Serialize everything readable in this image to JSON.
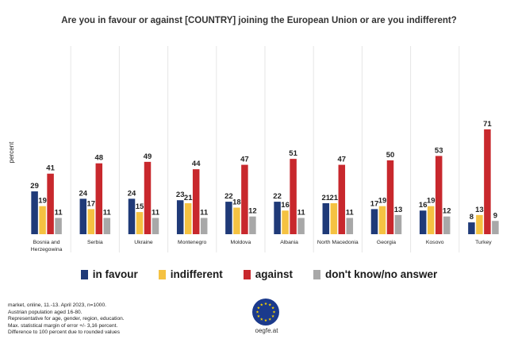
{
  "chart_data": {
    "type": "bar",
    "title": "Are you in favour or against [COUNTRY] joining the European Union or are you indifferent?",
    "ylabel": "percent",
    "ylim": [
      0,
      80
    ],
    "grid": false,
    "legend_position": "bottom",
    "categories": [
      "Bosnia and Herzegowina",
      "Serbia",
      "Ukraine",
      "Montenegro",
      "Moldova",
      "Albania",
      "North Macedonia",
      "Georgia",
      "Kosovo",
      "Turkey"
    ],
    "category_lines": [
      [
        "Bosnia and",
        "Herzegowina"
      ],
      [
        "Serbia"
      ],
      [
        "Ukraine"
      ],
      [
        "Montenegro"
      ],
      [
        "Moldova"
      ],
      [
        "Albania"
      ],
      [
        "North Macedonia"
      ],
      [
        "Georgia"
      ],
      [
        "Kosovo"
      ],
      [
        "Turkey"
      ]
    ],
    "series": [
      {
        "name": "in favour",
        "color": "#1f3a78",
        "values": [
          29,
          24,
          24,
          23,
          22,
          22,
          21,
          17,
          16,
          8
        ]
      },
      {
        "name": "indifferent",
        "color": "#f5c242",
        "values": [
          19,
          17,
          15,
          21,
          18,
          16,
          21,
          19,
          19,
          13
        ]
      },
      {
        "name": "against",
        "color": "#c8282d",
        "values": [
          41,
          48,
          49,
          44,
          47,
          51,
          47,
          50,
          53,
          71
        ]
      },
      {
        "name": "don't know/no answer",
        "color": "#a8a8a8",
        "values": [
          11,
          11,
          11,
          11,
          12,
          11,
          11,
          13,
          12,
          9
        ]
      }
    ]
  },
  "footnote": [
    "market, online, 11.-13. April 2023, n=1000.",
    "Austrian population aged 16-80.",
    "Representative for age, gender, region, education.",
    "Max. statistical margin of error +/- 3,16 percent.",
    "Difference to 100 percent due to rounded values"
  ],
  "logo_text": "oegfe.at",
  "colors": {
    "eu_blue": "#1b3a8c",
    "eu_star": "#f5d000"
  }
}
